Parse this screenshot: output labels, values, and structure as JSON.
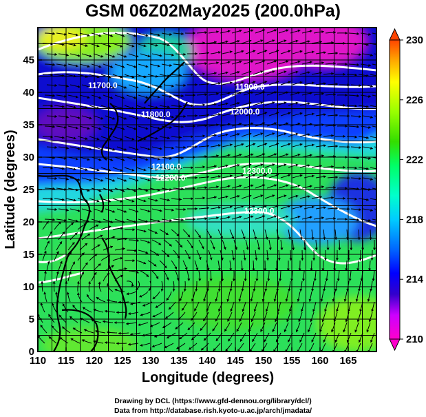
{
  "title": "GSM 06Z02May2025 (200.0hPa)",
  "x_axis": {
    "label": "Longitude (degrees)",
    "range": [
      110,
      170
    ],
    "ticks": [
      "110",
      "115",
      "120",
      "125",
      "130",
      "135",
      "140",
      "145",
      "150",
      "155",
      "160",
      "165"
    ]
  },
  "y_axis": {
    "label": "Latitude  (degrees)",
    "range": [
      0,
      50
    ],
    "ticks": [
      "0",
      "5",
      "10",
      "15",
      "20",
      "25",
      "30",
      "35",
      "40",
      "45"
    ]
  },
  "colorbar": {
    "range": [
      210,
      230
    ],
    "ticks": [
      "210",
      "214",
      "218",
      "222",
      "226",
      "230"
    ],
    "colors": [
      "#ff00cc",
      "#cc00ff",
      "#3300cc",
      "#0000ff",
      "#0066ff",
      "#00ccff",
      "#00ffcc",
      "#00ff66",
      "#33dd00",
      "#99ff00",
      "#ffff00",
      "#ffaa00",
      "#ff4400"
    ]
  },
  "contour_labels": [
    "11700.0",
    "11800.0",
    "11900.0",
    "12000.0",
    "12100.0",
    "12200.0",
    "12300.0",
    "12300.0"
  ],
  "credits": [
    "Drawing by DCL (https://www.gfd-dennou.org/library/dcl/)",
    "Data from http://database.rish.kyoto-u.ac.jp/arch/jmadata/"
  ]
}
